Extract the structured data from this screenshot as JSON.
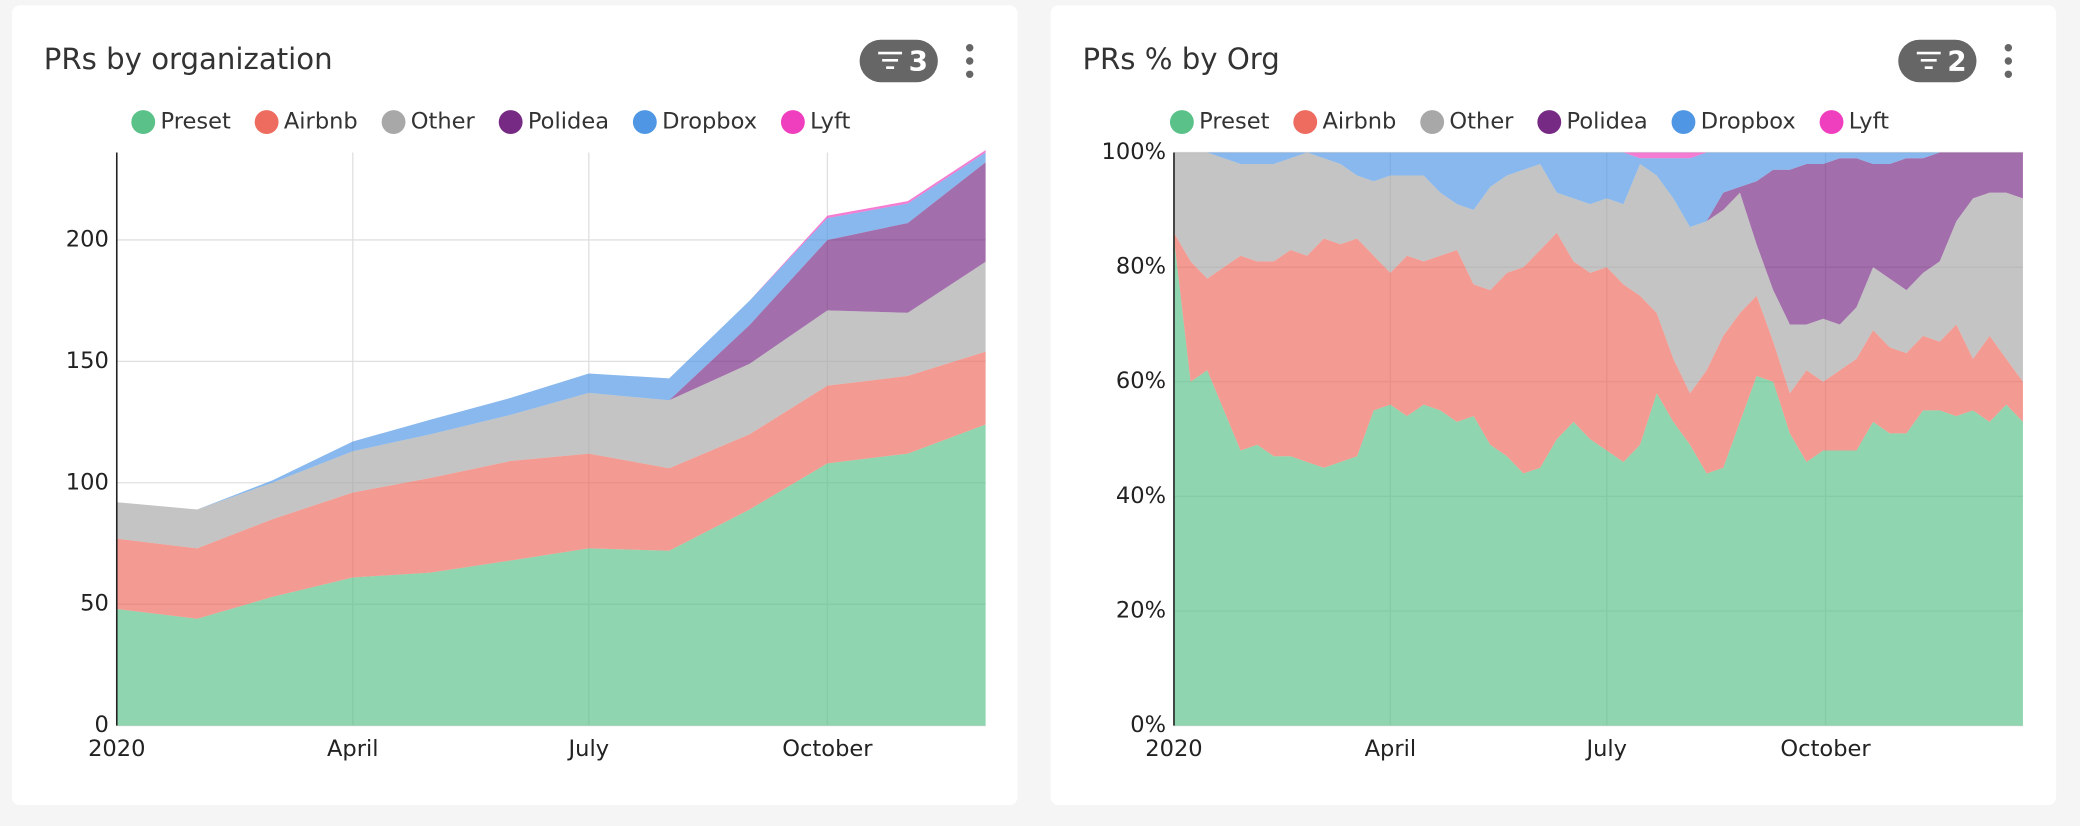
{
  "chart_data": [
    {
      "type": "area",
      "stacked": true,
      "title": "PRs by organization",
      "filter_badge": "3",
      "legend": "top",
      "grid": true,
      "x": [
        0,
        31,
        60,
        91,
        121,
        152,
        182,
        213,
        244,
        274,
        305,
        335
      ],
      "xlim": [
        0,
        335
      ],
      "xticks": [
        {
          "value": 0,
          "label": "2020"
        },
        {
          "value": 91,
          "label": "April"
        },
        {
          "value": 182,
          "label": "July"
        },
        {
          "value": 274,
          "label": "October"
        }
      ],
      "ylim": [
        0,
        236
      ],
      "yticks": [
        0,
        50,
        100,
        150,
        200
      ],
      "series": [
        {
          "name": "Preset",
          "color": "#5ac189",
          "values": [
            48,
            44,
            53,
            61,
            63,
            68,
            73,
            72,
            89,
            108,
            112,
            124
          ]
        },
        {
          "name": "Airbnb",
          "color": "#ee6b5f",
          "values": [
            29,
            29,
            32,
            35,
            39,
            41,
            39,
            34,
            31,
            32,
            32,
            30
          ]
        },
        {
          "name": "Other",
          "color": "#a8a8a8",
          "values": [
            15,
            16,
            15,
            17,
            18,
            19,
            25,
            28,
            29,
            31,
            26,
            37
          ]
        },
        {
          "name": "Polidea",
          "color": "#762a83",
          "values": [
            0,
            0,
            0,
            0,
            0,
            0,
            0,
            0,
            16,
            29,
            37,
            41
          ]
        },
        {
          "name": "Dropbox",
          "color": "#4f97e4",
          "values": [
            0,
            0,
            1,
            4,
            6,
            7,
            8,
            9,
            10,
            9,
            8,
            4
          ]
        },
        {
          "name": "Lyft",
          "color": "#ef3fbe",
          "values": [
            0,
            0,
            0,
            0,
            0,
            0,
            0,
            0,
            0,
            1,
            1,
            1
          ]
        }
      ]
    },
    {
      "type": "area",
      "stacked": true,
      "title": "PRs % by Org",
      "filter_badge": "2",
      "legend": "top",
      "grid": true,
      "x": [
        0,
        7,
        14,
        21,
        28,
        35,
        42,
        49,
        56,
        63,
        70,
        77,
        84,
        91,
        98,
        105,
        112,
        119,
        126,
        133,
        140,
        147,
        154,
        161,
        168,
        175,
        182,
        189,
        196,
        203,
        210,
        217,
        224,
        231,
        238,
        245,
        252,
        259,
        266,
        273,
        280,
        287,
        294,
        301,
        308,
        315,
        322,
        329,
        336,
        343,
        350,
        357
      ],
      "xlim": [
        0,
        357
      ],
      "xticks": [
        {
          "value": 0,
          "label": "2020"
        },
        {
          "value": 91,
          "label": "April"
        },
        {
          "value": 182,
          "label": "July"
        },
        {
          "value": 274,
          "label": "October"
        }
      ],
      "ylim": [
        0,
        100
      ],
      "yticks": [
        {
          "value": 0,
          "label": "0%"
        },
        {
          "value": 20,
          "label": "20%"
        },
        {
          "value": 40,
          "label": "40%"
        },
        {
          "value": 60,
          "label": "60%"
        },
        {
          "value": 80,
          "label": "80%"
        },
        {
          "value": 100,
          "label": "100%"
        }
      ],
      "series": [
        {
          "name": "Preset",
          "color": "#5ac189",
          "values": [
            85,
            60,
            62,
            55,
            48,
            49,
            47,
            47,
            46,
            45,
            46,
            47,
            55,
            56,
            54,
            56,
            55,
            53,
            54,
            49,
            47,
            44,
            45,
            50,
            53,
            50,
            48,
            46,
            49,
            58,
            53,
            49,
            44,
            45,
            53,
            61,
            60,
            51,
            46,
            48,
            48,
            48,
            53,
            51,
            51,
            55,
            55,
            54,
            55,
            53,
            56,
            53
          ]
        },
        {
          "name": "Airbnb",
          "color": "#ee6b5f",
          "values": [
            1,
            21,
            16,
            25,
            34,
            32,
            34,
            36,
            36,
            40,
            38,
            38,
            27,
            23,
            28,
            25,
            27,
            30,
            23,
            27,
            32,
            36,
            38,
            36,
            28,
            29,
            32,
            31,
            26,
            14,
            11,
            9,
            18,
            23,
            19,
            14,
            7,
            7,
            16,
            12,
            14,
            16,
            16,
            15,
            14,
            13,
            12,
            16,
            9,
            15,
            8,
            7
          ]
        },
        {
          "name": "Other",
          "color": "#a8a8a8",
          "values": [
            14,
            19,
            22,
            19,
            16,
            17,
            17,
            16,
            18,
            14,
            14,
            11,
            13,
            17,
            14,
            15,
            11,
            8,
            13,
            18,
            17,
            17,
            15,
            7,
            11,
            12,
            12,
            14,
            23,
            24,
            28,
            29,
            26,
            22,
            21,
            9,
            9,
            12,
            8,
            11,
            8,
            9,
            11,
            12,
            11,
            11,
            14,
            18,
            28,
            25,
            29,
            32
          ]
        },
        {
          "name": "Polidea",
          "color": "#762a83",
          "values": [
            0,
            0,
            0,
            0,
            0,
            0,
            0,
            0,
            0,
            0,
            0,
            0,
            0,
            0,
            0,
            0,
            0,
            0,
            0,
            0,
            0,
            0,
            0,
            0,
            0,
            0,
            0,
            0,
            0,
            0,
            0,
            0,
            0,
            3,
            1,
            11,
            21,
            27,
            28,
            27,
            29,
            26,
            18,
            20,
            23,
            20,
            19,
            12,
            8,
            7,
            7,
            8
          ]
        },
        {
          "name": "Dropbox",
          "color": "#4f97e4",
          "values": [
            0,
            0,
            0,
            1,
            2,
            2,
            2,
            1,
            0,
            1,
            2,
            4,
            5,
            4,
            4,
            4,
            7,
            9,
            10,
            6,
            4,
            3,
            2,
            7,
            8,
            9,
            8,
            9,
            1,
            3,
            7,
            12,
            12,
            7,
            6,
            5,
            3,
            3,
            2,
            2,
            1,
            1,
            2,
            2,
            1,
            1,
            0,
            0,
            0,
            0,
            0,
            0
          ]
        },
        {
          "name": "Lyft",
          "color": "#ef3fbe",
          "values": [
            0,
            0,
            0,
            0,
            0,
            0,
            0,
            0,
            0,
            0,
            0,
            0,
            0,
            0,
            0,
            0,
            0,
            0,
            0,
            0,
            0,
            0,
            0,
            0,
            0,
            0,
            0,
            0,
            1,
            1,
            1,
            1,
            0,
            0,
            0,
            0,
            0,
            0,
            0,
            0,
            0,
            0,
            0,
            0,
            0,
            0,
            0,
            0,
            0,
            0,
            0,
            0
          ]
        }
      ]
    }
  ]
}
